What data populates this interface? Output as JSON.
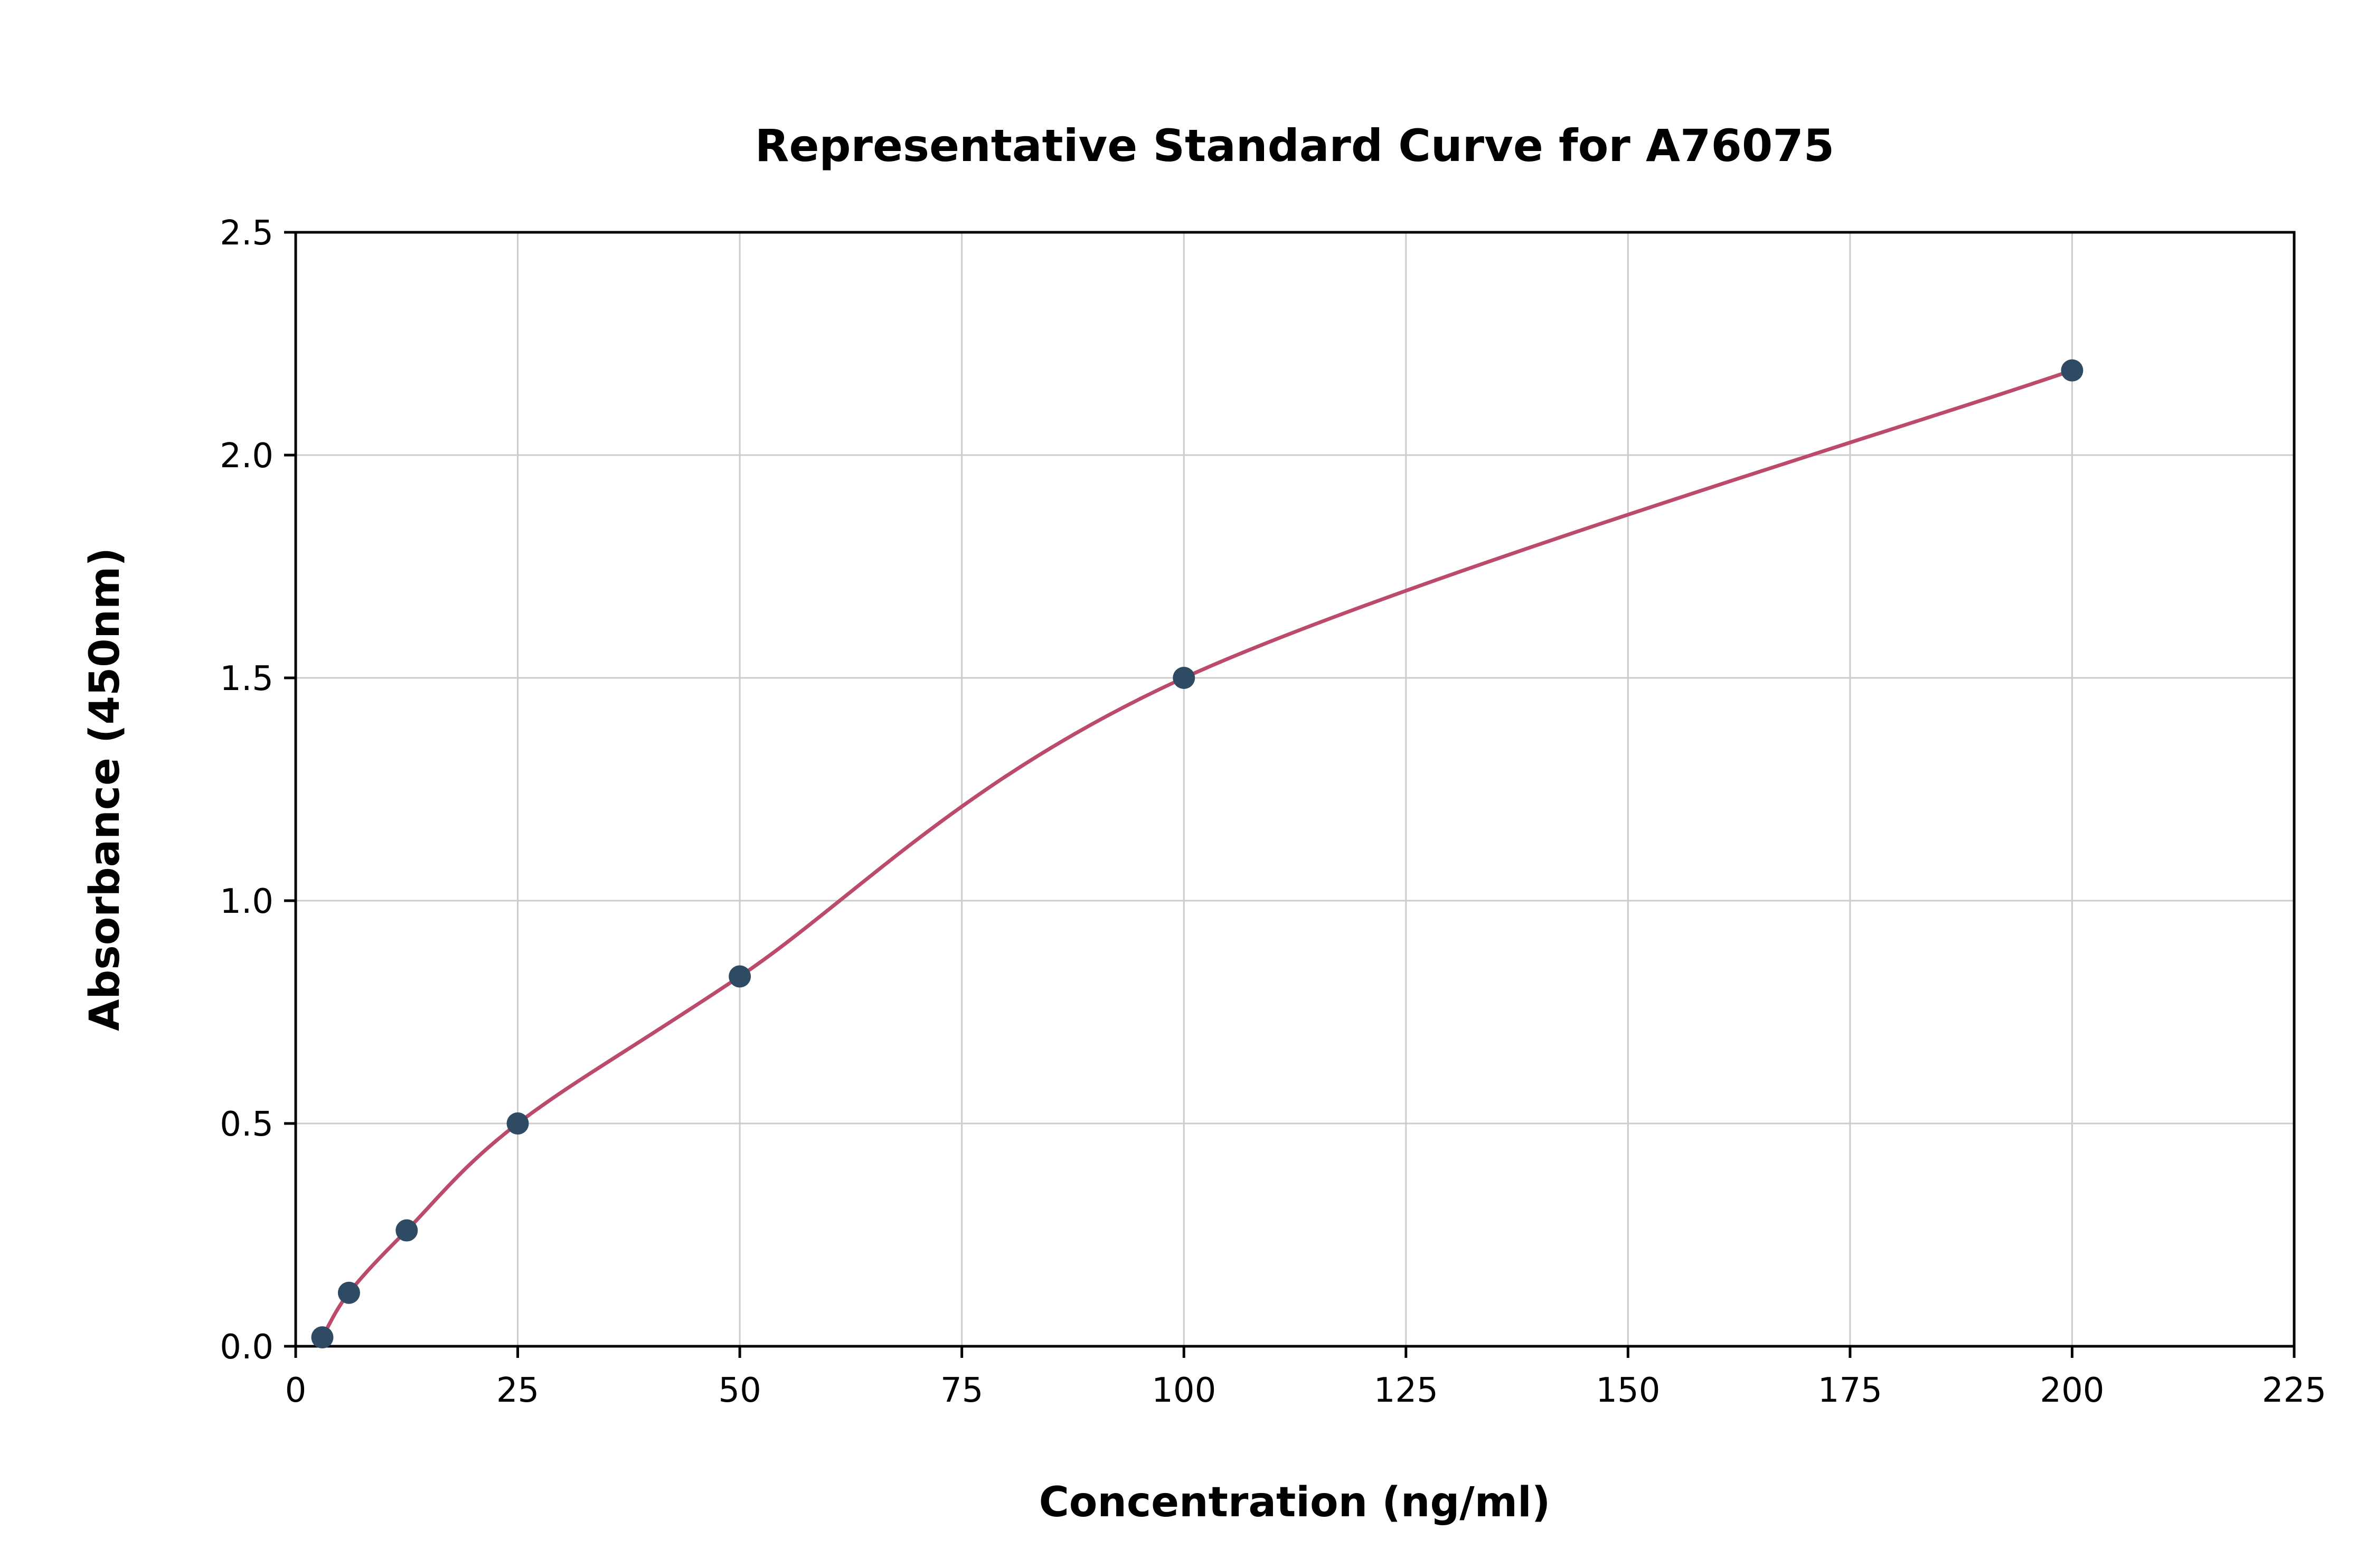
{
  "page": {
    "background": "#ffffff"
  },
  "chart_data": {
    "type": "scatter",
    "title": "Representative Standard Curve for A76075",
    "xlabel": "Concentration (ng/ml)",
    "ylabel": "Absorbance (450nm)",
    "series": [
      {
        "name": "standard-points",
        "kind": "points",
        "x": [
          3,
          6,
          12.5,
          25,
          50,
          100,
          200
        ],
        "y": [
          0.02,
          0.12,
          0.26,
          0.5,
          0.83,
          1.5,
          2.19
        ],
        "color": "#2f4a63",
        "marker_radius": 21
      },
      {
        "name": "fitted-curve",
        "kind": "smooth-line",
        "color": "#bc4a6a",
        "stroke_width": 7
      }
    ],
    "xlim": [
      0,
      225
    ],
    "ylim": [
      0,
      2.5
    ],
    "xticks": [
      0,
      25,
      50,
      75,
      100,
      125,
      150,
      175,
      200,
      225
    ],
    "xtick_labels": [
      "0",
      "25",
      "50",
      "75",
      "100",
      "125",
      "150",
      "175",
      "200",
      "225"
    ],
    "yticks": [
      0,
      0.5,
      1.0,
      1.5,
      2.0,
      2.5
    ],
    "ytick_labels": [
      "0.0",
      "0.5",
      "1.0",
      "1.5",
      "2.0",
      "2.5"
    ],
    "grid": true,
    "grid_color": "#cccccc",
    "axis_color": "#000000",
    "legend": null
  }
}
